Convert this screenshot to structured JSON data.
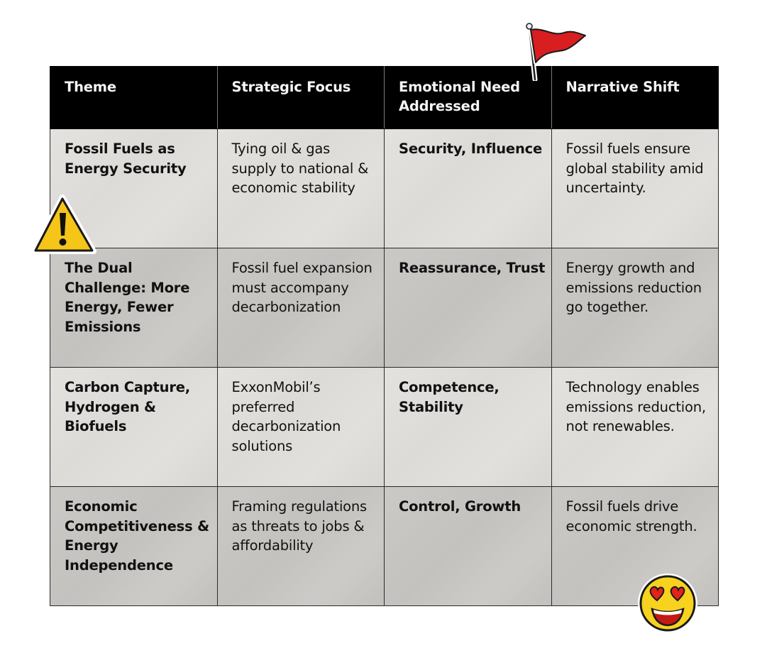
{
  "table": {
    "headers": [
      "Theme",
      "Strategic Focus",
      "Emotional Need Addressed",
      "Narrative Shift"
    ],
    "rows": [
      {
        "theme": "Fossil Fuels as Energy Security",
        "strategic_focus": "Tying oil & gas supply to national & economic stability",
        "emotional_need": "Security, Influence",
        "narrative_shift": "Fossil fuels ensure global stability amid uncertainty."
      },
      {
        "theme": "The Dual Challenge: More Energy, Fewer Emissions",
        "strategic_focus": "Fossil fuel expansion must accompany decarbonization",
        "emotional_need": "Reassurance, Trust",
        "narrative_shift": "Energy growth and emissions reduction go together."
      },
      {
        "theme": "Carbon Capture, Hydrogen & Biofuels",
        "strategic_focus": "ExxonMobil’s preferred decarbonization solutions",
        "emotional_need": "Competence, Stability",
        "narrative_shift": "Technology enables emissions reduction, not renewables."
      },
      {
        "theme": "Economic Competitiveness & Energy Independence",
        "strategic_focus": "Framing regulations as threats to jobs & affordability",
        "emotional_need": "Control, Growth",
        "narrative_shift": "Fossil fuels drive economic strength."
      }
    ]
  },
  "decorations": {
    "flag_icon": "red-flag-icon",
    "warning_icon": "warning-triangle-icon",
    "emoji_icon": "heart-eyes-emoji-icon",
    "colors": {
      "header_bg": "#000000",
      "header_text": "#f4f4f4",
      "row_light": "#e0dedb",
      "row_dark": "#c8c6c3",
      "flag_red": "#d81e1e",
      "warning_yellow": "#f5c518",
      "emoji_yellow": "#f7d21e"
    }
  }
}
